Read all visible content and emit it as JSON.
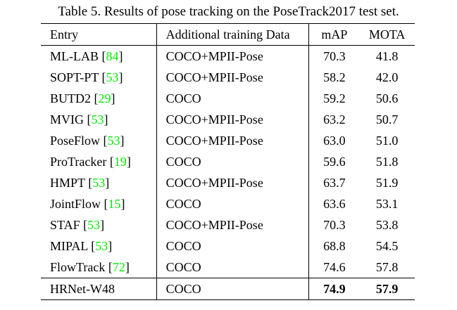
{
  "caption": "Table 5. Results of pose tracking on the PoseTrack2017 test set.",
  "columns": {
    "entry": "Entry",
    "data": "Additional training Data",
    "map": "mAP",
    "mota": "MOTA"
  },
  "rows": [
    {
      "entry": "ML-LAB",
      "ref": "84",
      "data": "COCO+MPII-Pose",
      "map": "70.3",
      "mota": "41.8"
    },
    {
      "entry": "SOPT-PT",
      "ref": "53",
      "data": "COCO+MPII-Pose",
      "map": "58.2",
      "mota": "42.0"
    },
    {
      "entry": "BUTD2",
      "ref": "29",
      "data": "COCO",
      "map": "59.2",
      "mota": "50.6"
    },
    {
      "entry": "MVIG",
      "ref": "53",
      "data": "COCO+MPII-Pose",
      "map": "63.2",
      "mota": "50.7"
    },
    {
      "entry": "PoseFlow",
      "ref": "53",
      "data": "COCO+MPII-Pose",
      "map": "63.0",
      "mota": "51.0"
    },
    {
      "entry": "ProTracker",
      "ref": "19",
      "data": "COCO",
      "map": "59.6",
      "mota": "51.8"
    },
    {
      "entry": "HMPT",
      "ref": "53",
      "data": "COCO+MPII-Pose",
      "map": "63.7",
      "mota": "51.9"
    },
    {
      "entry": "JointFlow",
      "ref": "15",
      "data": "COCO",
      "map": "63.6",
      "mota": "53.1"
    },
    {
      "entry": "STAF",
      "ref": "53",
      "data": "COCO+MPII-Pose",
      "map": "70.3",
      "mota": "53.8"
    },
    {
      "entry": "MIPAL",
      "ref": "53",
      "data": "COCO",
      "map": "68.8",
      "mota": "54.5"
    },
    {
      "entry": "FlowTrack",
      "ref": "72",
      "data": "COCO",
      "map": "74.6",
      "mota": "57.8"
    }
  ],
  "final_row": {
    "entry": "HRNet-W48",
    "data": "COCO",
    "map": "74.9",
    "mota": "57.9"
  },
  "colors": {
    "citation": "#00ee00",
    "text": "#000000"
  }
}
